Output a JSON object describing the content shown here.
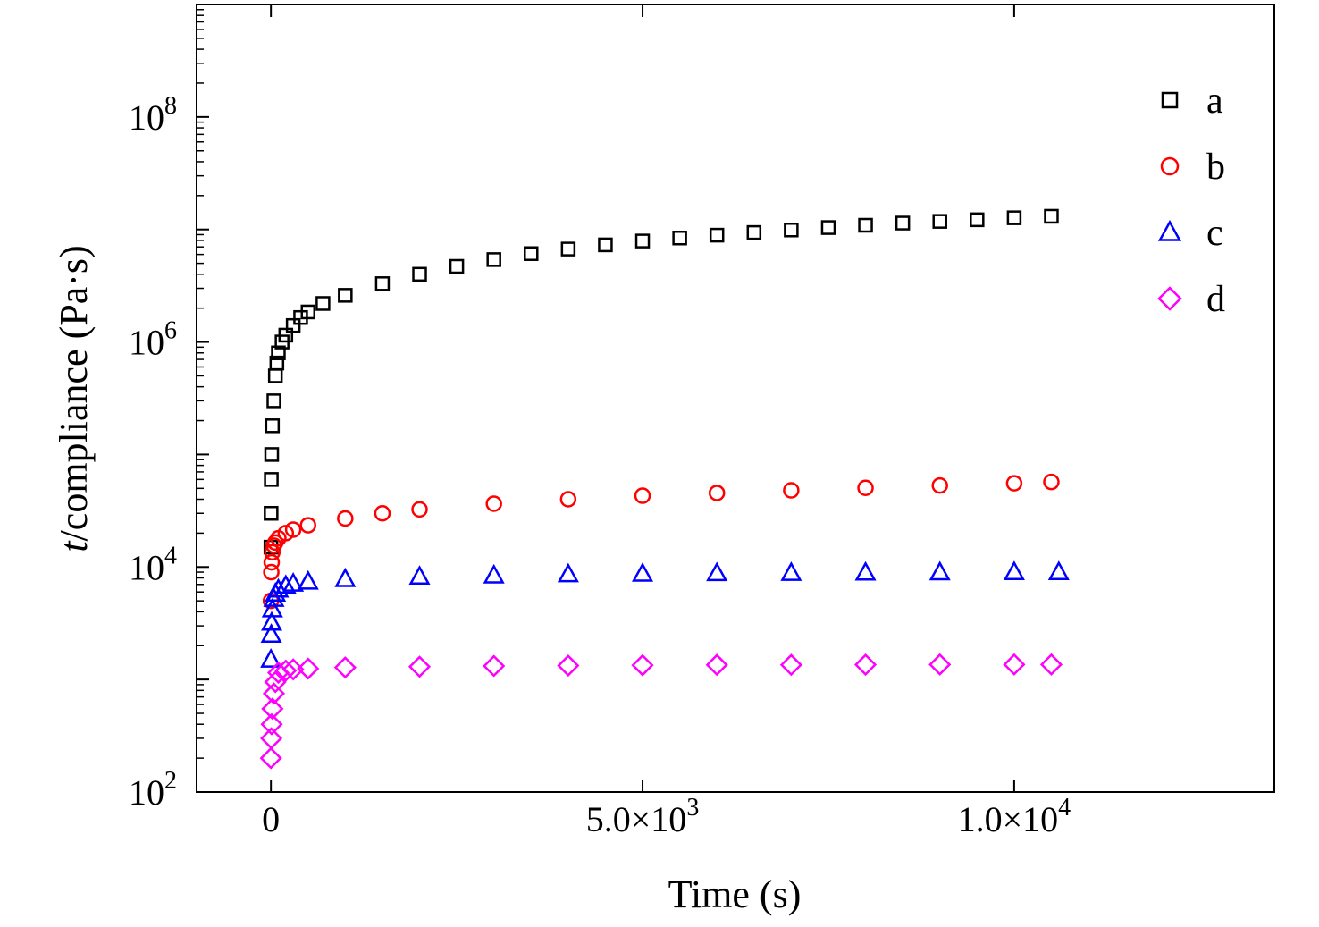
{
  "chart_data": {
    "type": "scatter",
    "xlabel": "Time (s)",
    "ylabel_italic": "t",
    "ylabel_rest": "/compliance (Pa·s)",
    "y_scale": "log",
    "xlim": [
      -1000,
      13500
    ],
    "ylim": [
      100,
      1000000000
    ],
    "x_ticks": [
      {
        "value": 0,
        "mantissa": "0",
        "exponent": ""
      },
      {
        "value": 5000,
        "mantissa": "5.0×10",
        "exponent": "3"
      },
      {
        "value": 10000,
        "mantissa": "1.0×10",
        "exponent": "4"
      }
    ],
    "y_ticks": [
      {
        "value": 100,
        "base": "10",
        "exponent": "2"
      },
      {
        "value": 10000,
        "base": "10",
        "exponent": "4"
      },
      {
        "value": 1000000,
        "base": "10",
        "exponent": "6"
      },
      {
        "value": 100000000,
        "base": "10",
        "exponent": "8"
      }
    ],
    "legend_position": "top-right",
    "grid": false,
    "series": [
      {
        "name": "a",
        "marker": "square",
        "color": "#000000",
        "x": [
          0,
          2,
          5,
          10,
          20,
          40,
          60,
          80,
          100,
          150,
          200,
          300,
          400,
          500,
          700,
          1000,
          1500,
          2000,
          2500,
          3000,
          3500,
          4000,
          4500,
          5000,
          5500,
          6000,
          6500,
          7000,
          7500,
          8000,
          8500,
          9000,
          9500,
          10000,
          10500
        ],
        "y": [
          15000,
          30000,
          60000,
          100000,
          180000,
          300000,
          500000,
          650000,
          800000,
          1000000,
          1150000,
          1400000,
          1650000,
          1850000,
          2200000,
          2600000,
          3300000,
          4000000,
          4700000,
          5400000,
          6100000,
          6700000,
          7300000,
          7900000,
          8400000,
          8900000,
          9400000,
          9900000,
          10400000,
          10900000,
          11400000,
          11800000,
          12200000,
          12700000,
          13100000
        ]
      },
      {
        "name": "b",
        "marker": "circle",
        "color": "#ff0000",
        "x": [
          0,
          5,
          10,
          20,
          40,
          60,
          100,
          200,
          300,
          500,
          1000,
          1500,
          2000,
          3000,
          4000,
          5000,
          6000,
          7000,
          8000,
          9000,
          10000,
          10500
        ],
        "y": [
          5000,
          9000,
          11000,
          13500,
          15500,
          16500,
          18000,
          20000,
          21500,
          23500,
          27000,
          30000,
          32500,
          36500,
          40000,
          43000,
          45500,
          48000,
          50500,
          53000,
          55500,
          57000
        ]
      },
      {
        "name": "c",
        "marker": "triangle",
        "color": "#0000ff",
        "x": [
          0,
          5,
          10,
          20,
          40,
          60,
          100,
          200,
          300,
          500,
          1000,
          2000,
          3000,
          4000,
          5000,
          6000,
          7000,
          8000,
          9000,
          10000,
          10600
        ],
        "y": [
          1500,
          2500,
          3200,
          4200,
          5200,
          5800,
          6300,
          6800,
          7100,
          7400,
          7800,
          8200,
          8400,
          8600,
          8700,
          8800,
          8850,
          8900,
          8950,
          9000,
          9000
        ]
      },
      {
        "name": "d",
        "marker": "diamond",
        "color": "#ff00ff",
        "x": [
          0,
          5,
          10,
          20,
          40,
          60,
          100,
          200,
          300,
          500,
          1000,
          2000,
          3000,
          4000,
          5000,
          6000,
          7000,
          8000,
          9000,
          10000,
          10500
        ],
        "y": [
          200,
          300,
          400,
          550,
          750,
          950,
          1150,
          1200,
          1230,
          1250,
          1280,
          1300,
          1320,
          1330,
          1340,
          1350,
          1350,
          1355,
          1360,
          1360,
          1360
        ]
      }
    ]
  }
}
